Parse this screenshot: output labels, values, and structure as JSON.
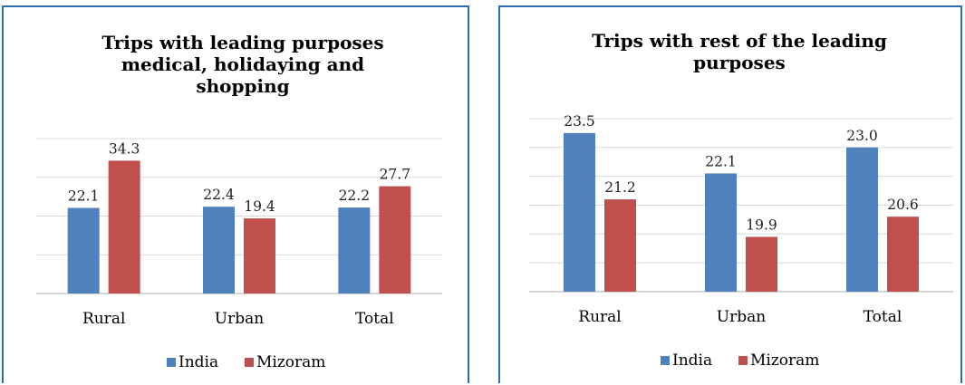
{
  "colors": {
    "india": "#4f81bd",
    "mizoram": "#c0504d",
    "grid": "#d9d9d9",
    "axis": "#bfbfbf",
    "border": "#2f6fb0"
  },
  "chart_data": [
    {
      "type": "bar",
      "title": "Trips with leading purposes medical, holidaying and shopping",
      "title_lines": [
        "Trips with leading purposes",
        "medical, holidaying and",
        "shopping"
      ],
      "categories": [
        "Rural",
        "Urban",
        "Total"
      ],
      "series": [
        {
          "name": "India",
          "values": [
            22.1,
            22.4,
            22.2
          ]
        },
        {
          "name": "Mizoram",
          "values": [
            34.3,
            19.4,
            27.7
          ]
        }
      ],
      "xlabel": "",
      "ylabel": "",
      "ylim": [
        0,
        40
      ],
      "grid": true,
      "legend": "bottom"
    },
    {
      "type": "bar",
      "title": "Trips with rest of the leading purposes",
      "title_lines": [
        "Trips with rest of the leading",
        "purposes"
      ],
      "categories": [
        "Rural",
        "Urban",
        "Total"
      ],
      "series": [
        {
          "name": "India",
          "values": [
            23.5,
            22.1,
            23.0
          ]
        },
        {
          "name": "Mizoram",
          "values": [
            21.2,
            19.9,
            20.6
          ]
        }
      ],
      "xlabel": "",
      "ylabel": "",
      "ylim": [
        18,
        24.5
      ],
      "grid": true,
      "legend": "bottom"
    }
  ]
}
